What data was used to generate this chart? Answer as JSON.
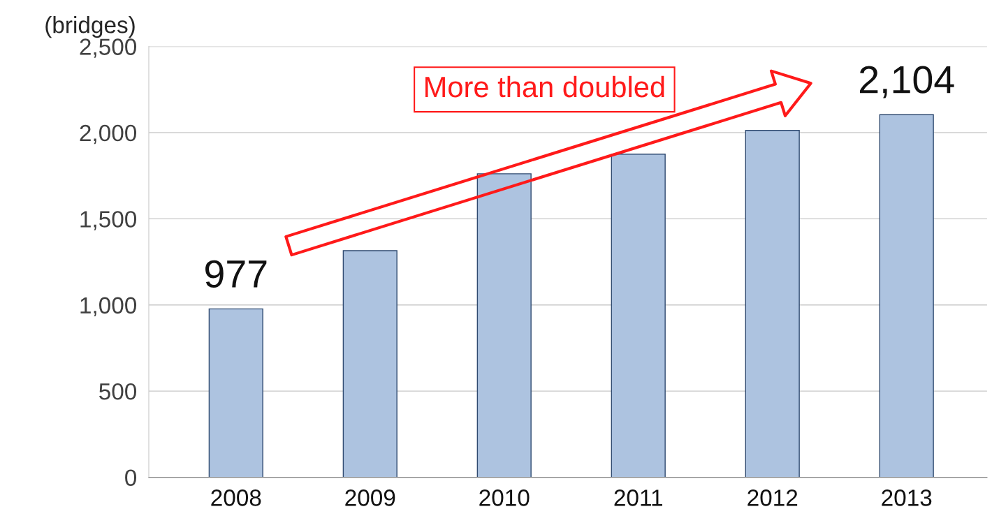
{
  "chart_data": {
    "type": "bar",
    "ylabel": "(bridges)",
    "categories": [
      "2008",
      "2009",
      "2010",
      "2011",
      "2012",
      "2013"
    ],
    "values": [
      977,
      1315,
      1761,
      1875,
      2013,
      2104
    ],
    "value_labels": [
      "977",
      null,
      null,
      null,
      null,
      "2,104"
    ],
    "color": "#adc3e0",
    "ylim": [
      0,
      2500
    ],
    "yticks": [
      {
        "value": 0,
        "label": "0"
      },
      {
        "value": 500,
        "label": "500"
      },
      {
        "value": 1000,
        "label": "1,000"
      },
      {
        "value": 1500,
        "label": "1,500"
      },
      {
        "value": 2000,
        "label": "2,000"
      },
      {
        "value": 2500,
        "label": "2,500"
      }
    ],
    "grid": "y",
    "annotations": [
      "More than doubled"
    ]
  }
}
